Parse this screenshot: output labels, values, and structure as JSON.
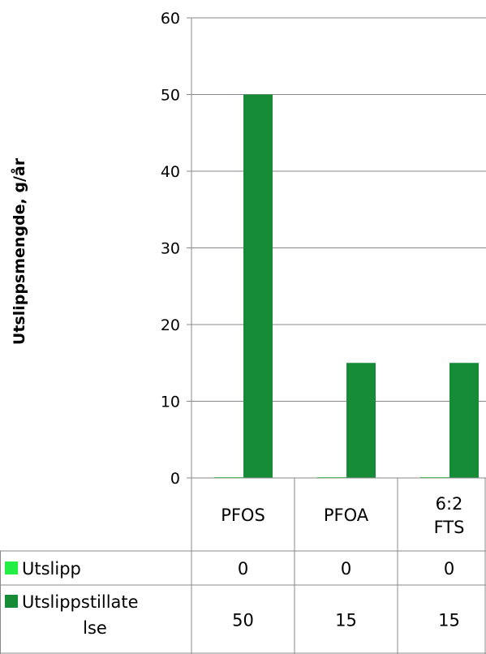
{
  "chart_data": {
    "type": "bar",
    "categories": [
      "PFOS",
      "PFOA",
      "6:2 FTS"
    ],
    "series": [
      {
        "name": "Utslipp",
        "values": [
          0,
          0,
          0
        ],
        "color": "#22ee44"
      },
      {
        "name": "Utslippstillatelse",
        "values": [
          50,
          15,
          15
        ],
        "color": "#168c36"
      }
    ],
    "ylabel": "Utslippsmengde, g/år",
    "ylim": [
      0,
      60
    ],
    "yticks": [
      0,
      10,
      20,
      30,
      40,
      50,
      60
    ],
    "grid": true,
    "legend": "data-table"
  },
  "table": {
    "rows": [
      {
        "label": "Utslipp",
        "cells": [
          "0",
          "0",
          "0"
        ]
      },
      {
        "label": "Utslippstillatelse",
        "cells": [
          "50",
          "15",
          "15"
        ]
      }
    ]
  }
}
